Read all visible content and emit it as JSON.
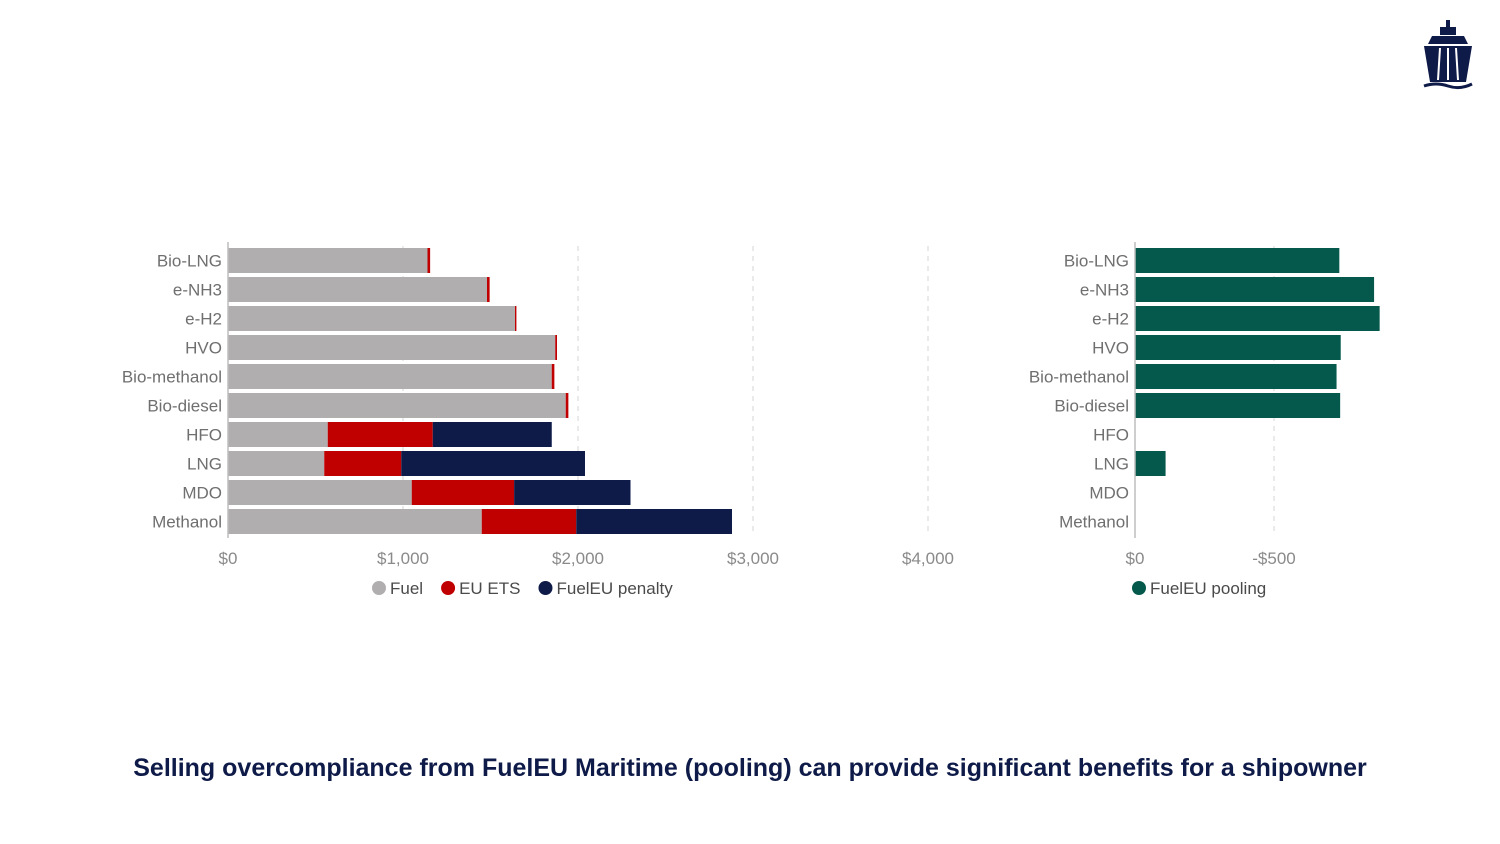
{
  "caption": "Selling overcompliance from FuelEU Maritime (pooling) can provide significant benefits for a shipowner",
  "logo": {
    "icon": "ship-icon",
    "color": "#0e1a48"
  },
  "chart_data": [
    {
      "type": "bar",
      "orientation": "horizontal",
      "stacked": true,
      "categories": [
        "Bio-LNG",
        "e-NH3",
        "e-H2",
        "HVO",
        "Bio-methanol",
        "Bio-diesel",
        "HFO",
        "LNG",
        "MDO",
        "Methanol"
      ],
      "series": [
        {
          "name": "Fuel",
          "color": "#b0aeae",
          "values": [
            1140,
            1480,
            1640,
            1870,
            1850,
            1930,
            570,
            550,
            1050,
            1450
          ]
        },
        {
          "name": "EU ETS",
          "color": "#c00000",
          "values": [
            15,
            15,
            8,
            10,
            15,
            15,
            600,
            440,
            585,
            540
          ]
        },
        {
          "name": "FuelEU penalty",
          "color": "#0e1a48",
          "values": [
            0,
            0,
            0,
            0,
            0,
            0,
            680,
            1050,
            665,
            890
          ]
        }
      ],
      "xlim": [
        0,
        4000
      ],
      "xticks": [
        0,
        1000,
        2000,
        3000,
        4000
      ],
      "xtick_labels": [
        "$0",
        "$1,000",
        "$2,000",
        "$3,000",
        "$4,000"
      ],
      "grid": "vertical dashed",
      "legend": "bottom"
    },
    {
      "type": "bar",
      "orientation": "horizontal",
      "categories": [
        "Bio-LNG",
        "e-NH3",
        "e-H2",
        "HVO",
        "Bio-methanol",
        "Bio-diesel",
        "HFO",
        "LNG",
        "MDO",
        "Methanol"
      ],
      "series": [
        {
          "name": "FuelEU pooling",
          "color": "#04594c",
          "values": [
            -735,
            -860,
            -880,
            -740,
            -725,
            -738,
            0,
            -110,
            0,
            0
          ]
        }
      ],
      "xlim": [
        0,
        -1000
      ],
      "xticks": [
        0,
        -500
      ],
      "xtick_labels": [
        "$0",
        "-$500"
      ],
      "grid": "vertical dashed",
      "legend": "bottom"
    }
  ]
}
